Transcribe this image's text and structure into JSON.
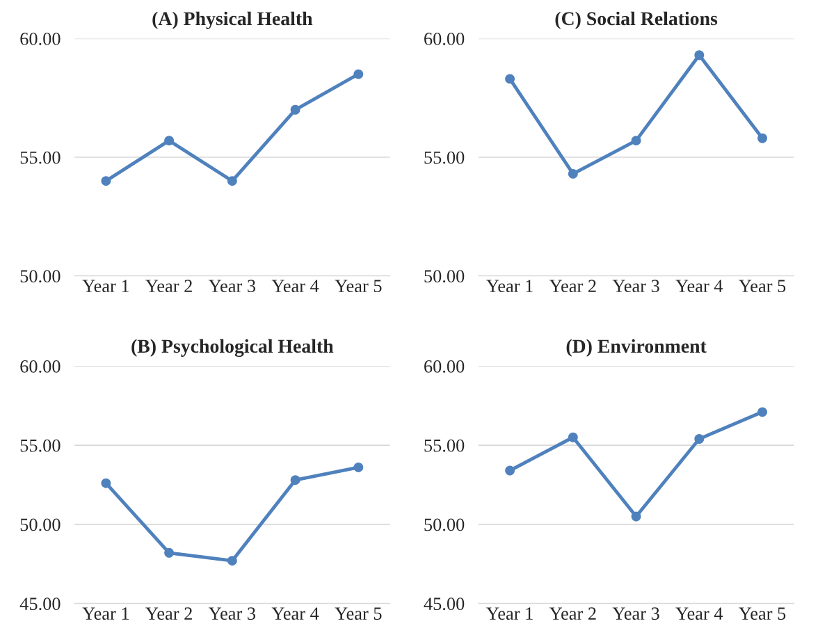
{
  "chart_data": [
    {
      "type": "line",
      "title": "(A) Physical Health",
      "categories": [
        "Year 1",
        "Year 2",
        "Year 3",
        "Year 4",
        "Year 5"
      ],
      "values": [
        54.0,
        55.7,
        54.0,
        57.0,
        58.5
      ],
      "color": "#4f81bd",
      "marker": "circle",
      "ylim": [
        50,
        60
      ],
      "yticks": [
        {
          "value": 50,
          "label": "50.00"
        },
        {
          "value": 55,
          "label": "55.00"
        },
        {
          "value": 60,
          "label": "60.00"
        }
      ],
      "grid": "y",
      "legend": false
    },
    {
      "type": "line",
      "title": "(C) Social Relations",
      "categories": [
        "Year 1",
        "Year 2",
        "Year 3",
        "Year 4",
        "Year 5"
      ],
      "values": [
        58.3,
        54.3,
        55.7,
        59.3,
        55.8
      ],
      "color": "#4f81bd",
      "marker": "circle",
      "ylim": [
        50,
        60
      ],
      "yticks": [
        {
          "value": 50,
          "label": "50.00"
        },
        {
          "value": 55,
          "label": "55.00"
        },
        {
          "value": 60,
          "label": "60.00"
        }
      ],
      "grid": "y",
      "legend": false
    },
    {
      "type": "line",
      "title": "(B) Psychological Health",
      "categories": [
        "Year 1",
        "Year 2",
        "Year 3",
        "Year 4",
        "Year 5"
      ],
      "values": [
        52.6,
        48.2,
        47.7,
        52.8,
        53.6
      ],
      "color": "#4f81bd",
      "marker": "circle",
      "ylim": [
        45,
        60
      ],
      "yticks": [
        {
          "value": 45,
          "label": "45.00"
        },
        {
          "value": 50,
          "label": "50.00"
        },
        {
          "value": 55,
          "label": "55.00"
        },
        {
          "value": 60,
          "label": "60.00"
        }
      ],
      "grid": "y",
      "legend": false
    },
    {
      "type": "line",
      "title": "(D) Environment",
      "categories": [
        "Year 1",
        "Year 2",
        "Year 3",
        "Year 4",
        "Year 5"
      ],
      "values": [
        53.4,
        55.5,
        50.5,
        55.4,
        57.1
      ],
      "color": "#4f81bd",
      "marker": "circle",
      "ylim": [
        45,
        60
      ],
      "yticks": [
        {
          "value": 45,
          "label": "45.00"
        },
        {
          "value": 50,
          "label": "50.00"
        },
        {
          "value": 55,
          "label": "55.00"
        },
        {
          "value": 60,
          "label": "60.00"
        }
      ],
      "grid": "y",
      "legend": false
    }
  ]
}
